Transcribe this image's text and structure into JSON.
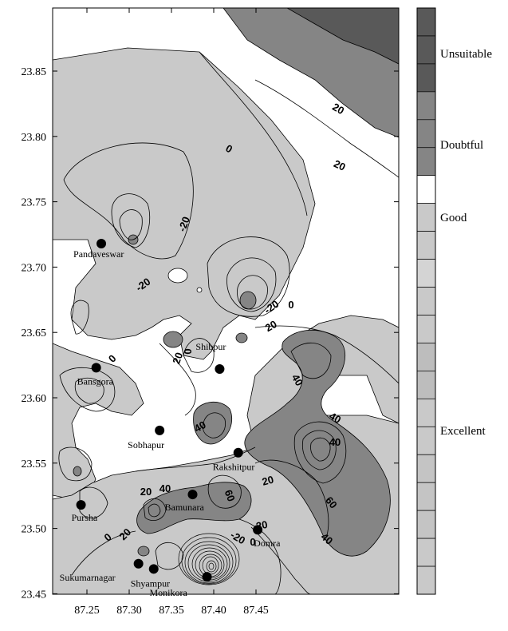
{
  "map": {
    "x_ticks": [
      "87.25",
      "87.30",
      "87.35",
      "87.40",
      "87.45"
    ],
    "y_ticks": [
      "23.85",
      "23.80",
      "23.75",
      "23.70",
      "23.65",
      "23.60",
      "23.55",
      "23.50",
      "23.45"
    ],
    "contour_labels": [
      "0",
      "-20",
      "-20",
      "20",
      "-20",
      "0",
      "20",
      "0",
      "20",
      "40",
      "20",
      "40",
      "40",
      "60",
      "40",
      "0",
      "40",
      "60",
      "20",
      "20",
      "0",
      "20",
      "-20",
      "0",
      "20",
      "40"
    ],
    "sites": [
      {
        "name": "Pandaveswar",
        "lon": 87.267,
        "lat": 23.718
      },
      {
        "name": "Bansgora",
        "lon": 87.261,
        "lat": 23.623
      },
      {
        "name": "Shibpur",
        "lon": 87.407,
        "lat": 23.622
      },
      {
        "name": "Sobhapur",
        "lon": 87.336,
        "lat": 23.575
      },
      {
        "name": "Rakshitpur",
        "lon": 87.429,
        "lat": 23.558
      },
      {
        "name": "Pursha",
        "lon": 87.243,
        "lat": 23.518
      },
      {
        "name": "Bamunara",
        "lon": 87.375,
        "lat": 23.526
      },
      {
        "name": "Domra",
        "lon": 87.452,
        "lat": 23.499
      },
      {
        "name": "Sukumarnagar",
        "lon": 87.311,
        "lat": 23.473
      },
      {
        "name": "Shyampur",
        "lon": 87.329,
        "lat": 23.469
      },
      {
        "name": "Monikora",
        "lon": 87.392,
        "lat": 23.463
      }
    ]
  },
  "legend": {
    "labels": [
      "Unsuitable",
      "Doubtful",
      "Good",
      "Excellent"
    ],
    "colors": {
      "unsuitable": "#595959",
      "doubtful": "#858585",
      "good": "#ffffff",
      "excellent": "#c9c9c9"
    }
  }
}
